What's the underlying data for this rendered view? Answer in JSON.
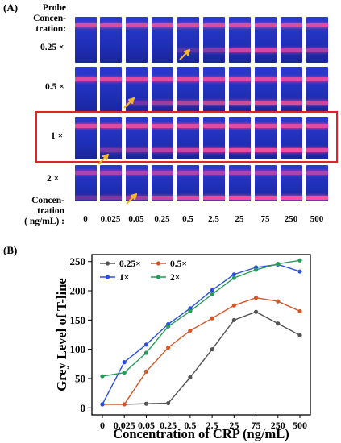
{
  "panel_a": {
    "label": "(A)",
    "probe_label_lines": [
      "Probe",
      "Concen-",
      "tration:"
    ],
    "rows": [
      {
        "label": "0.25 ×",
        "t_intensity": [
          0,
          0,
          0,
          0,
          0.25,
          0.45,
          0.75,
          0.8,
          0.7,
          0.6
        ],
        "c_intensity": 0.85,
        "c_y": 0.18,
        "t_y": 0.72
      },
      {
        "label": "0.5 ×",
        "t_intensity": [
          0,
          0,
          0.35,
          0.55,
          0.65,
          0.72,
          0.8,
          0.85,
          0.85,
          0.75
        ],
        "c_intensity": 0.85,
        "c_y": 0.28,
        "t_y": 0.78
      },
      {
        "label": "1 ×",
        "t_intensity": [
          0,
          0.4,
          0.5,
          0.65,
          0.75,
          0.85,
          0.9,
          0.9,
          0.95,
          0.85
        ],
        "c_intensity": 0.85,
        "c_y": 0.22,
        "t_y": 0.78
      },
      {
        "label": "2 ×",
        "t_intensity": [
          0.35,
          0.45,
          0.6,
          0.75,
          0.85,
          0.9,
          0.95,
          0.95,
          1.0,
          1.0
        ],
        "c_intensity": 0.6,
        "c_y": 0.2,
        "t_y": 0.9
      }
    ],
    "conc_label_lines": [
      "Concen-",
      "tration",
      "( ng/mL) :"
    ],
    "concentrations": [
      "0",
      "0.025",
      "0.05",
      "0.25",
      "0.5",
      "2.5",
      "25",
      "75",
      "250",
      "500"
    ],
    "highlight_color": "#e52222",
    "arrow_color": "#f2b632",
    "strip_color": "#1f2fb8",
    "band_color": "#ff4fa0"
  },
  "panel_b": {
    "label": "(B)"
  },
  "chart_data": {
    "type": "line",
    "categories": [
      "0",
      "0.025",
      "0.05",
      "0.25",
      "0.5",
      "2.5",
      "25",
      "75",
      "250",
      "500"
    ],
    "xlabel": "Concentration of CRP (ng/mL)",
    "ylabel": "Grey Level of T-line",
    "ylim": [
      -12,
      262
    ],
    "yticks": [
      "0",
      "50",
      "100",
      "150",
      "200",
      "250"
    ],
    "grid": false,
    "legend_position": "top-left",
    "series": [
      {
        "name": "0.25×",
        "color": "#555555",
        "values": [
          6,
          6,
          7,
          8,
          52,
          100,
          150,
          164,
          144,
          124
        ]
      },
      {
        "name": "0.5×",
        "color": "#d2582a",
        "values": [
          6,
          6,
          62,
          103,
          132,
          153,
          175,
          188,
          182,
          165
        ]
      },
      {
        "name": "1×",
        "color": "#2a4fe0",
        "values": [
          6,
          78,
          108,
          143,
          170,
          201,
          228,
          240,
          245,
          233
        ]
      },
      {
        "name": "2×",
        "color": "#2a9a5a",
        "values": [
          54,
          60,
          94,
          139,
          165,
          194,
          222,
          236,
          246,
          252
        ]
      }
    ]
  }
}
